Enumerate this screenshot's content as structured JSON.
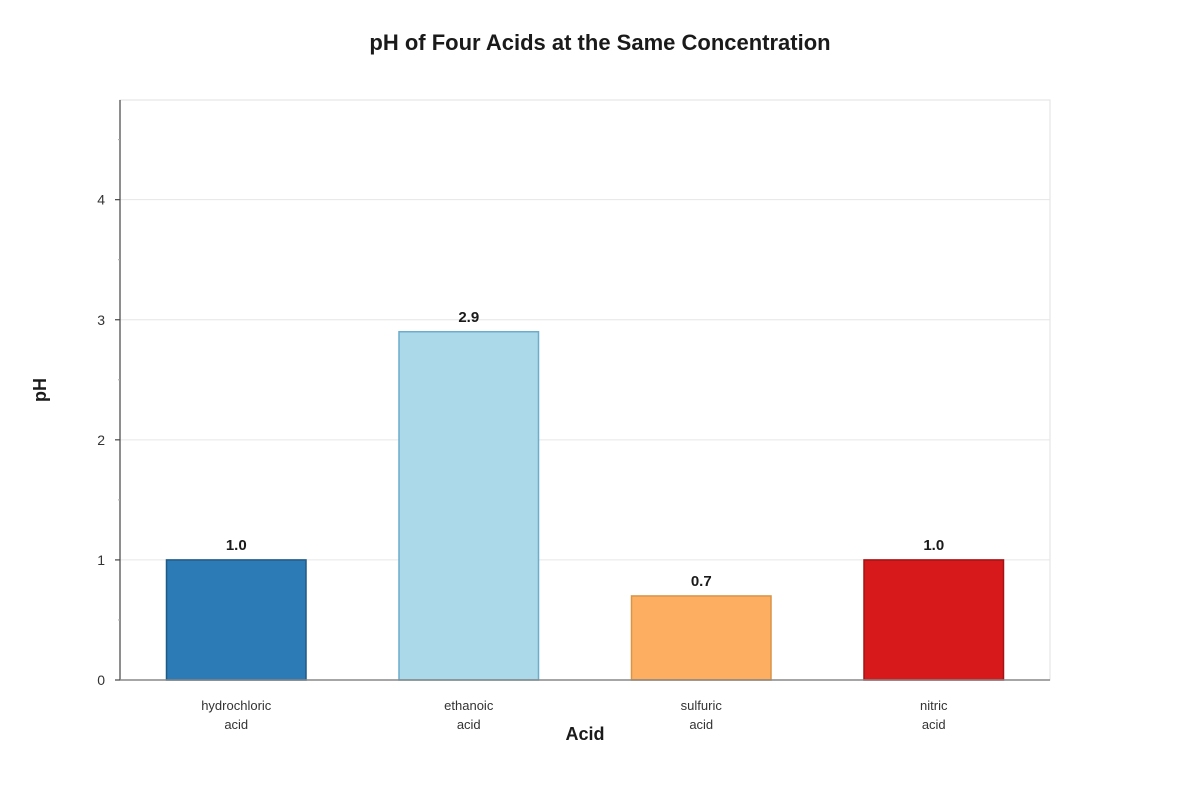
{
  "chart_data": {
    "type": "bar",
    "title": "pH of Four Acids at the Same Concentration",
    "xlabel": "Acid",
    "ylabel": "pH",
    "categories": [
      [
        "hydrochloric",
        "acid"
      ],
      [
        "ethanoic",
        "acid"
      ],
      [
        "sulfuric",
        "acid"
      ],
      [
        "nitric",
        "acid"
      ]
    ],
    "values": [
      1.0,
      2.9,
      0.7,
      1.0
    ],
    "data_labels": [
      "1.0",
      "2.9",
      "0.7",
      "1.0"
    ],
    "colors": [
      "#2c7bb6",
      "#abd9e9",
      "#fdae61",
      "#d7191c"
    ],
    "border_colors": [
      "#1f5a86",
      "#6aaecb",
      "#d99446",
      "#a31314"
    ],
    "ylim": [
      0,
      4.83
    ],
    "yticks": [
      0,
      1,
      2,
      3,
      4
    ],
    "grid": true,
    "legend": "none"
  }
}
